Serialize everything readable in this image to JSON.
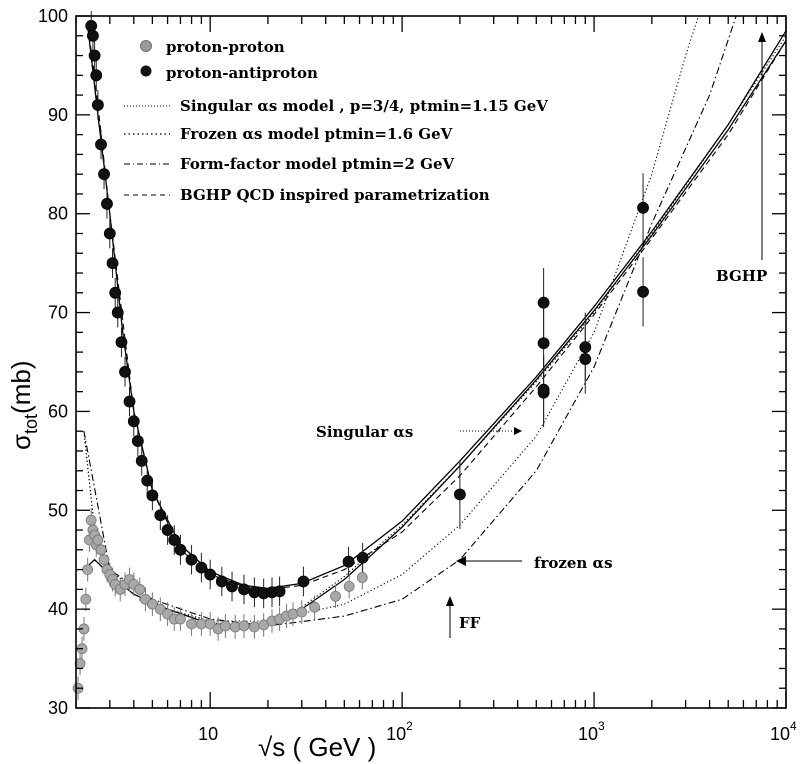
{
  "chart_data": {
    "type": "scatter",
    "xscale": "log",
    "xlabel": "√s ( GeV )",
    "ylabel_main": "σ",
    "ylabel_sub": "tot",
    "ylabel_unit": "(mb)",
    "xlim": [
      2,
      10000
    ],
    "ylim": [
      30,
      100
    ],
    "x_ticks": [
      {
        "value": 10,
        "base": "10",
        "exp": ""
      },
      {
        "value": 100,
        "base": "10",
        "exp": "2"
      },
      {
        "value": 1000,
        "base": "10",
        "exp": "3"
      },
      {
        "value": 10000,
        "base": "10",
        "exp": "4"
      }
    ],
    "y_ticks": [
      30,
      40,
      50,
      60,
      70,
      80,
      90,
      100
    ],
    "legend": {
      "pp": "proton-proton",
      "ppbar": "proton-antiproton",
      "singular": "Singular αs model , p=3/4, ptmin=1.15 GeV",
      "frozen": "Frozen αs model ptmin=1.6 GeV",
      "ff": "Form-factor model ptmin=2 GeV",
      "bghp": "BGHP QCD inspired parametrization"
    },
    "annotations": {
      "singular": "Singular αs",
      "frozen": "frozen αs",
      "ff": "FF",
      "bghp": "BGHP"
    },
    "series": [
      {
        "name": "proton-proton",
        "marker": "grey-circle",
        "points": [
          [
            2.05,
            32
          ],
          [
            2.1,
            34.5
          ],
          [
            2.15,
            36
          ],
          [
            2.2,
            38
          ],
          [
            2.25,
            41
          ],
          [
            2.3,
            44
          ],
          [
            2.35,
            47
          ],
          [
            2.4,
            49
          ],
          [
            2.45,
            48
          ],
          [
            2.5,
            47.5
          ],
          [
            2.55,
            46.5
          ],
          [
            2.6,
            47
          ],
          [
            2.7,
            46
          ],
          [
            2.8,
            45
          ],
          [
            2.9,
            44
          ],
          [
            3.0,
            43.5
          ],
          [
            3.1,
            43
          ],
          [
            3.2,
            42.5
          ],
          [
            3.4,
            42
          ],
          [
            3.6,
            42.5
          ],
          [
            3.8,
            43
          ],
          [
            4.0,
            42.5
          ],
          [
            4.3,
            42
          ],
          [
            4.6,
            41
          ],
          [
            5.0,
            40.5
          ],
          [
            5.5,
            40
          ],
          [
            6.0,
            39.5
          ],
          [
            6.5,
            39
          ],
          [
            7.0,
            39
          ],
          [
            8.0,
            38.5
          ],
          [
            9.0,
            38.5
          ],
          [
            10.0,
            38.5
          ],
          [
            11.0,
            38
          ],
          [
            12.0,
            38.3
          ],
          [
            13.5,
            38.2
          ],
          [
            15.0,
            38.3
          ],
          [
            17.0,
            38.2
          ],
          [
            19.0,
            38.4
          ],
          [
            21.0,
            38.8
          ],
          [
            23.0,
            39.0
          ],
          [
            25.0,
            39.3
          ],
          [
            27.0,
            39.5
          ],
          [
            30.0,
            39.7
          ],
          [
            35.0,
            40.2
          ],
          [
            45.0,
            41.3
          ],
          [
            53.0,
            42.3
          ],
          [
            62.0,
            43.2
          ]
        ]
      },
      {
        "name": "proton-antiproton",
        "marker": "black-circle",
        "points": [
          [
            2.4,
            99
          ],
          [
            2.45,
            98
          ],
          [
            2.5,
            96
          ],
          [
            2.55,
            94
          ],
          [
            2.6,
            91
          ],
          [
            2.7,
            87
          ],
          [
            2.8,
            84
          ],
          [
            2.9,
            81
          ],
          [
            3.0,
            78
          ],
          [
            3.1,
            75
          ],
          [
            3.2,
            72
          ],
          [
            3.3,
            70
          ],
          [
            3.45,
            67
          ],
          [
            3.6,
            64
          ],
          [
            3.8,
            61
          ],
          [
            4.0,
            59
          ],
          [
            4.2,
            57
          ],
          [
            4.4,
            55
          ],
          [
            4.7,
            53
          ],
          [
            5.0,
            51.5
          ],
          [
            5.5,
            49.5
          ],
          [
            6.0,
            48
          ],
          [
            6.5,
            47
          ],
          [
            7.0,
            46
          ],
          [
            8.0,
            45
          ],
          [
            9.0,
            44.2
          ],
          [
            10.0,
            43.5
          ],
          [
            11.5,
            42.8
          ],
          [
            13.0,
            42.3
          ],
          [
            15.0,
            42
          ],
          [
            17.0,
            41.7
          ],
          [
            19.0,
            41.6
          ],
          [
            21.0,
            41.7
          ],
          [
            23.0,
            41.8
          ],
          [
            30.6,
            42.8
          ],
          [
            52.6,
            44.8
          ],
          [
            62.3,
            45.2
          ],
          [
            200,
            51.6
          ],
          [
            546,
            61.9
          ],
          [
            546,
            62.2
          ],
          [
            546,
            66.9
          ],
          [
            546,
            71.0
          ],
          [
            900,
            65.3
          ],
          [
            900,
            66.5
          ],
          [
            1800,
            72.1
          ],
          [
            1800,
            80.6
          ]
        ]
      }
    ],
    "curves": [
      {
        "name": "Singular αs",
        "style": "dotted",
        "points": [
          [
            2.2,
            58
          ],
          [
            2.5,
            48
          ],
          [
            3,
            44
          ],
          [
            4,
            42
          ],
          [
            6,
            40
          ],
          [
            10,
            38.6
          ],
          [
            15,
            38.4
          ],
          [
            20,
            38.8
          ],
          [
            30,
            40.2
          ],
          [
            50,
            43.3
          ],
          [
            100,
            48.5
          ],
          [
            200,
            54.5
          ],
          [
            500,
            63
          ],
          [
            1000,
            70
          ],
          [
            2000,
            78
          ],
          [
            5000,
            89
          ],
          [
            10000,
            98
          ]
        ]
      },
      {
        "name": "Frozen αs",
        "style": "dotted",
        "points": [
          [
            2.2,
            58
          ],
          [
            2.5,
            48
          ],
          [
            3,
            44
          ],
          [
            4,
            42
          ],
          [
            6,
            40
          ],
          [
            10,
            38.8
          ],
          [
            20,
            38.8
          ],
          [
            50,
            40.5
          ],
          [
            100,
            43.5
          ],
          [
            200,
            48.5
          ],
          [
            500,
            57.5
          ],
          [
            1000,
            68
          ],
          [
            2000,
            84
          ],
          [
            3000,
            96
          ],
          [
            3500,
            100
          ]
        ]
      },
      {
        "name": "Form-factor",
        "style": "dashdot",
        "points": [
          [
            2.2,
            58
          ],
          [
            3,
            44
          ],
          [
            5,
            41
          ],
          [
            10,
            39
          ],
          [
            20,
            38.3
          ],
          [
            50,
            39.3
          ],
          [
            100,
            41
          ],
          [
            200,
            45
          ],
          [
            500,
            54
          ],
          [
            1000,
            64.5
          ],
          [
            2000,
            79
          ],
          [
            4000,
            92
          ],
          [
            5500,
            100
          ]
        ]
      },
      {
        "name": "BGHP",
        "style": "dashed",
        "points": [
          [
            2.3,
            99
          ],
          [
            2.5,
            94
          ],
          [
            3,
            80
          ],
          [
            4,
            60
          ],
          [
            5,
            52
          ],
          [
            7,
            46
          ],
          [
            10,
            43.5
          ],
          [
            15,
            42.3
          ],
          [
            20,
            42
          ],
          [
            30,
            42.4
          ],
          [
            50,
            44
          ],
          [
            100,
            47.8
          ],
          [
            200,
            53.5
          ],
          [
            500,
            62.5
          ],
          [
            1000,
            69.8
          ],
          [
            2000,
            77.5
          ],
          [
            5000,
            88
          ],
          [
            10000,
            97.5
          ]
        ]
      },
      {
        "name": "pp-fit",
        "style": "solid",
        "points": [
          [
            2.2,
            44
          ],
          [
            2.5,
            45
          ],
          [
            3,
            43.5
          ],
          [
            4,
            41.5
          ],
          [
            6,
            40
          ],
          [
            10,
            38.5
          ],
          [
            15,
            38.2
          ],
          [
            20,
            38.6
          ],
          [
            30,
            40
          ],
          [
            50,
            43
          ],
          [
            100,
            48.3
          ],
          [
            200,
            54.5
          ],
          [
            500,
            63.2
          ],
          [
            1000,
            70.2
          ],
          [
            2000,
            77.8
          ],
          [
            5000,
            88.5
          ],
          [
            10000,
            97.5
          ]
        ]
      },
      {
        "name": "ppbar-fit",
        "style": "solid",
        "points": [
          [
            2.3,
            99
          ],
          [
            2.6,
            90
          ],
          [
            3,
            80
          ],
          [
            3.5,
            68
          ],
          [
            4,
            60
          ],
          [
            5,
            52
          ],
          [
            7,
            46.5
          ],
          [
            10,
            43.8
          ],
          [
            15,
            42.4
          ],
          [
            20,
            42.1
          ],
          [
            30,
            42.6
          ],
          [
            50,
            44.4
          ],
          [
            100,
            48.9
          ],
          [
            200,
            55
          ],
          [
            500,
            63.5
          ],
          [
            1000,
            70.6
          ],
          [
            2000,
            78.2
          ],
          [
            5000,
            89
          ],
          [
            10000,
            98.5
          ]
        ]
      }
    ]
  }
}
